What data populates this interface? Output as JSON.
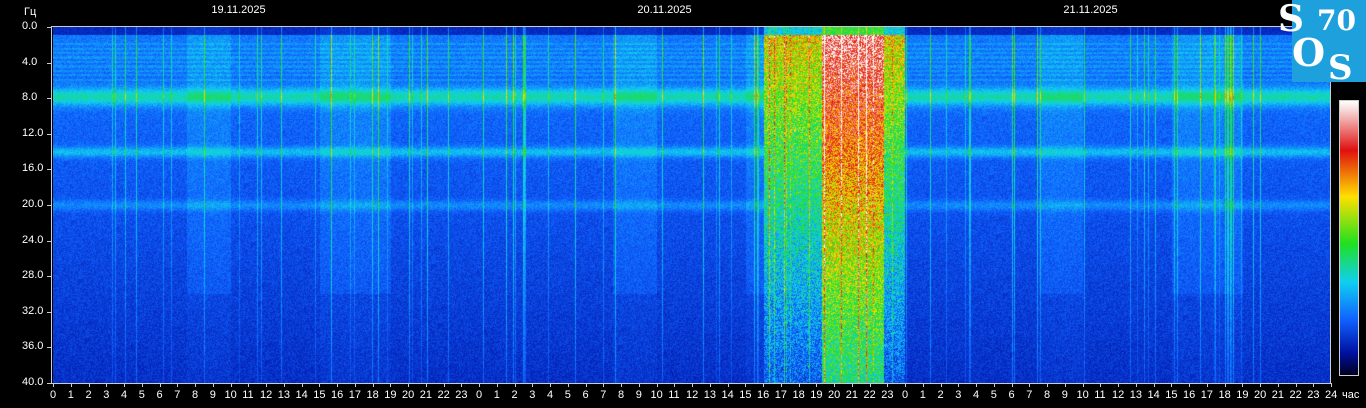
{
  "chart_data": {
    "type": "heatmap",
    "title": "",
    "ylabel": "Гц",
    "xlabel": "час",
    "ylim": [
      0,
      40
    ],
    "y_ticks": [
      "0.0",
      "4.0",
      "8.0",
      "12.0",
      "16.0",
      "20.0",
      "24.0",
      "28.0",
      "32.0",
      "36.0",
      "40.0"
    ],
    "x_ticks": [
      "0",
      "1",
      "2",
      "3",
      "4",
      "5",
      "6",
      "7",
      "8",
      "9",
      "10",
      "11",
      "12",
      "13",
      "14",
      "15",
      "16",
      "17",
      "18",
      "19",
      "20",
      "21",
      "22",
      "23",
      "0",
      "1",
      "2",
      "3",
      "4",
      "5",
      "6",
      "7",
      "8",
      "9",
      "10",
      "11",
      "12",
      "13",
      "14",
      "15",
      "16",
      "17",
      "18",
      "19",
      "20",
      "21",
      "22",
      "23",
      "0",
      "1",
      "2",
      "3",
      "4",
      "5",
      "6",
      "7",
      "8",
      "9",
      "10",
      "11",
      "12",
      "13",
      "14",
      "15",
      "16",
      "17",
      "18",
      "19",
      "20",
      "21",
      "22",
      "23",
      "24"
    ],
    "dates": [
      "19.11.2025",
      "20.11.2025",
      "21.11.2025"
    ],
    "resonance_bands_hz": [
      7.8,
      14.0,
      20.0
    ],
    "high_intensity_interval": {
      "date": "20.11.2025",
      "from_hour": 16,
      "to_hour": 23
    },
    "colormap": [
      "#000020",
      "#0010a0",
      "#1060ff",
      "#10d0f0",
      "#20e020",
      "#ffe000",
      "#e01010",
      "#ffffff"
    ]
  },
  "logo": {
    "text": "SOS 70",
    "color": "#1ea0dc"
  }
}
